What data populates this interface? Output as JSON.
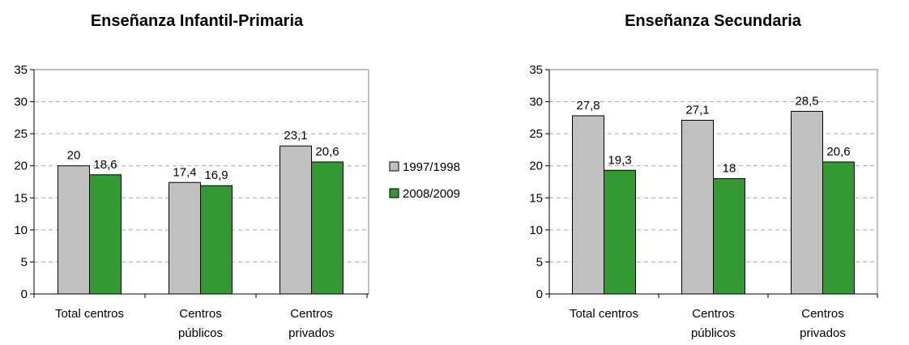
{
  "chart_data": [
    {
      "type": "bar",
      "title": "Enseñanza Infantil-Primaria",
      "categories": [
        [
          "Total centros"
        ],
        [
          "Centros",
          "públicos"
        ],
        [
          "Centros",
          "privados"
        ]
      ],
      "series": [
        {
          "name": "1997/1998",
          "values": [
            20,
            17.4,
            23.1
          ],
          "labels": [
            "20",
            "17,4",
            "23,1"
          ],
          "color": "#c0c0c0"
        },
        {
          "name": "2008/2009",
          "values": [
            18.6,
            16.9,
            20.6
          ],
          "labels": [
            "18,6",
            "16,9",
            "20,6"
          ],
          "color": "#339933"
        }
      ],
      "ylim": [
        0,
        35
      ],
      "yticks": [
        0,
        5,
        10,
        15,
        20,
        25,
        30,
        35
      ],
      "grid": true,
      "legend": "right"
    },
    {
      "type": "bar",
      "title": "Enseñanza Secundaria",
      "categories": [
        [
          "Total centros"
        ],
        [
          "Centros",
          "públicos"
        ],
        [
          "Centros",
          "privados"
        ]
      ],
      "series": [
        {
          "name": "1997/1998",
          "values": [
            27.8,
            27.1,
            28.5
          ],
          "labels": [
            "27,8",
            "27,1",
            "28,5"
          ],
          "color": "#c0c0c0"
        },
        {
          "name": "2008/2009",
          "values": [
            19.3,
            18,
            20.6
          ],
          "labels": [
            "19,3",
            "18",
            "20,6"
          ],
          "color": "#339933"
        }
      ],
      "ylim": [
        0,
        35
      ],
      "yticks": [
        0,
        5,
        10,
        15,
        20,
        25,
        30,
        35
      ],
      "grid": true
    }
  ],
  "legend": [
    {
      "name": "1997/1998",
      "color": "#c0c0c0"
    },
    {
      "name": "2008/2009",
      "color": "#339933"
    }
  ]
}
